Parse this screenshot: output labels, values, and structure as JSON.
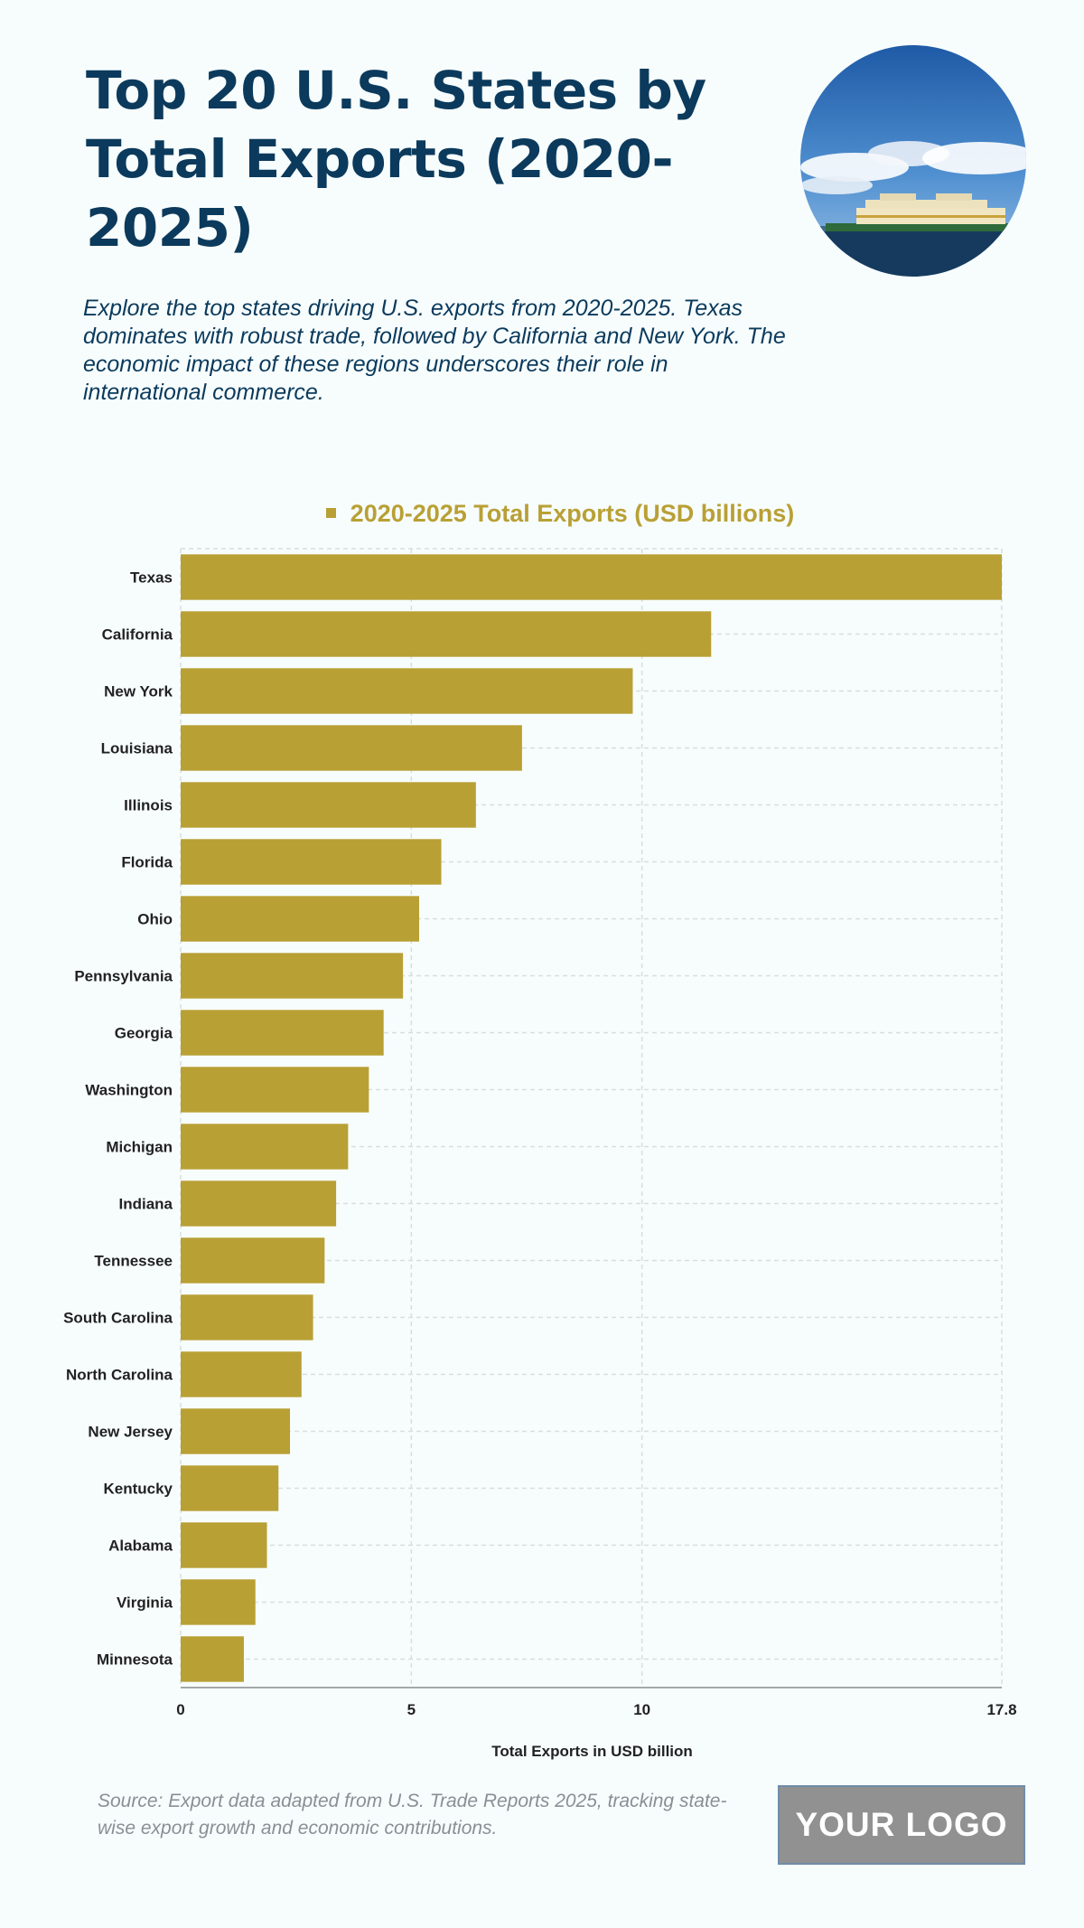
{
  "header": {
    "title": "Top 20 U.S. States by Total Exports (2020-2025)",
    "subtitle": "Explore the top states driving U.S. exports from 2020-2025. Texas dominates with robust trade, followed by California and New York. The economic impact of these regions underscores their role in international commerce."
  },
  "footer": {
    "source": "Source: Export data adapted from U.S. Trade Reports 2025, tracking state-wise export growth and economic contributions.",
    "logo": "YOUR LOGO"
  },
  "colors": {
    "bar": "#b9a035",
    "title": "#0b3a5c",
    "grid": "#d9dddd"
  },
  "chart_data": {
    "type": "bar",
    "orientation": "horizontal",
    "title": "",
    "xlabel": "Total Exports in USD billion",
    "ylabel": "",
    "xlim": [
      0,
      17.8
    ],
    "x_ticks": [
      "0",
      "5",
      "10",
      "17.8"
    ],
    "legend": "top-center",
    "grid": true,
    "categories": [
      "Texas",
      "California",
      "New York",
      "Louisiana",
      "Illinois",
      "Florida",
      "Ohio",
      "Pennsylvania",
      "Georgia",
      "Washington",
      "Michigan",
      "Indiana",
      "Tennessee",
      "South Carolina",
      "North Carolina",
      "New Jersey",
      "Kentucky",
      "Alabama",
      "Virginia",
      "Minnesota"
    ],
    "series": [
      {
        "name": "2020-2025 Total Exports (USD billions)",
        "values": [
          17.8,
          11.5,
          9.8,
          7.4,
          6.4,
          5.65,
          5.17,
          4.82,
          4.4,
          4.08,
          3.63,
          3.37,
          3.12,
          2.87,
          2.62,
          2.37,
          2.12,
          1.87,
          1.62,
          1.37
        ]
      }
    ]
  }
}
